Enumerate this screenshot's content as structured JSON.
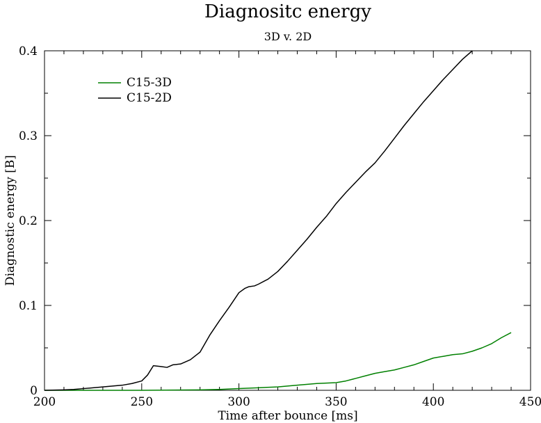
{
  "chart_data": {
    "type": "line",
    "title": "Diagnositc energy",
    "subtitle": "3D v. 2D",
    "xlabel": "Time after bounce [ms]",
    "ylabel": "Diagnostic energy [B]",
    "xlim": [
      200,
      450
    ],
    "ylim": [
      0,
      0.4
    ],
    "xticks": [
      200,
      250,
      300,
      350,
      400,
      450
    ],
    "yticks": [
      0,
      0.1,
      0.2,
      0.3,
      0.4
    ],
    "xtick_labels": [
      "200",
      "250",
      "300",
      "350",
      "400",
      "450"
    ],
    "ytick_labels": [
      "0",
      "0.1",
      "0.2",
      "0.3",
      "0.4"
    ],
    "grid": false,
    "legend_position": "top-left",
    "series": [
      {
        "name": "C15-3D",
        "color": "#008000",
        "x": [
          200,
          250,
          280,
          290,
          300,
          310,
          320,
          330,
          340,
          350,
          355,
          360,
          365,
          370,
          375,
          380,
          385,
          390,
          395,
          400,
          405,
          410,
          415,
          420,
          425,
          430,
          435,
          440
        ],
        "y": [
          0,
          0,
          0.0005,
          0.001,
          0.002,
          0.003,
          0.004,
          0.006,
          0.008,
          0.009,
          0.011,
          0.014,
          0.017,
          0.02,
          0.022,
          0.024,
          0.027,
          0.03,
          0.034,
          0.038,
          0.04,
          0.042,
          0.043,
          0.046,
          0.05,
          0.055,
          0.062,
          0.068
        ]
      },
      {
        "name": "C15-2D",
        "color": "#000000",
        "x": [
          200,
          210,
          215,
          220,
          225,
          230,
          235,
          240,
          245,
          250,
          253,
          256,
          260,
          263,
          266,
          270,
          275,
          280,
          285,
          290,
          295,
          300,
          303,
          305,
          308,
          310,
          315,
          320,
          325,
          330,
          335,
          340,
          345,
          350,
          355,
          360,
          365,
          370,
          375,
          380,
          385,
          390,
          395,
          400,
          405,
          410,
          415,
          420
        ],
        "y": [
          0,
          0.0005,
          0.001,
          0.002,
          0.003,
          0.004,
          0.005,
          0.006,
          0.008,
          0.011,
          0.018,
          0.029,
          0.028,
          0.027,
          0.03,
          0.031,
          0.036,
          0.045,
          0.065,
          0.082,
          0.098,
          0.115,
          0.12,
          0.122,
          0.123,
          0.125,
          0.131,
          0.14,
          0.152,
          0.165,
          0.178,
          0.192,
          0.205,
          0.22,
          0.233,
          0.245,
          0.257,
          0.268,
          0.282,
          0.297,
          0.312,
          0.326,
          0.34,
          0.353,
          0.366,
          0.378,
          0.39,
          0.4
        ]
      }
    ]
  }
}
